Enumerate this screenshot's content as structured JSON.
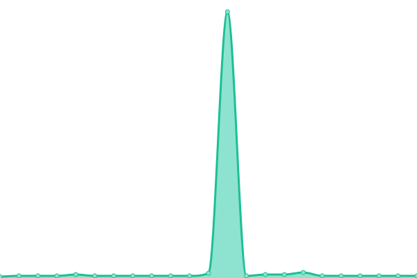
{
  "chart_data": {
    "type": "area",
    "x": [
      0,
      1,
      2,
      3,
      4,
      5,
      6,
      7,
      8,
      9,
      10,
      11,
      12,
      13,
      14,
      15,
      16,
      17,
      18,
      19,
      20,
      21,
      22
    ],
    "values": [
      0.5,
      0.8,
      0.8,
      0.8,
      1.3,
      0.8,
      0.8,
      0.8,
      0.8,
      0.8,
      0.8,
      1.8,
      100,
      0.8,
      1.3,
      1.3,
      2.1,
      0.8,
      0.8,
      0.8,
      0.8,
      0.8,
      0.8
    ],
    "ylim": [
      0,
      100
    ],
    "grid": false,
    "axes": false,
    "colors": {
      "line": "#1dbf95",
      "fill": "#8de3cf",
      "point": "#8de3cf"
    }
  }
}
